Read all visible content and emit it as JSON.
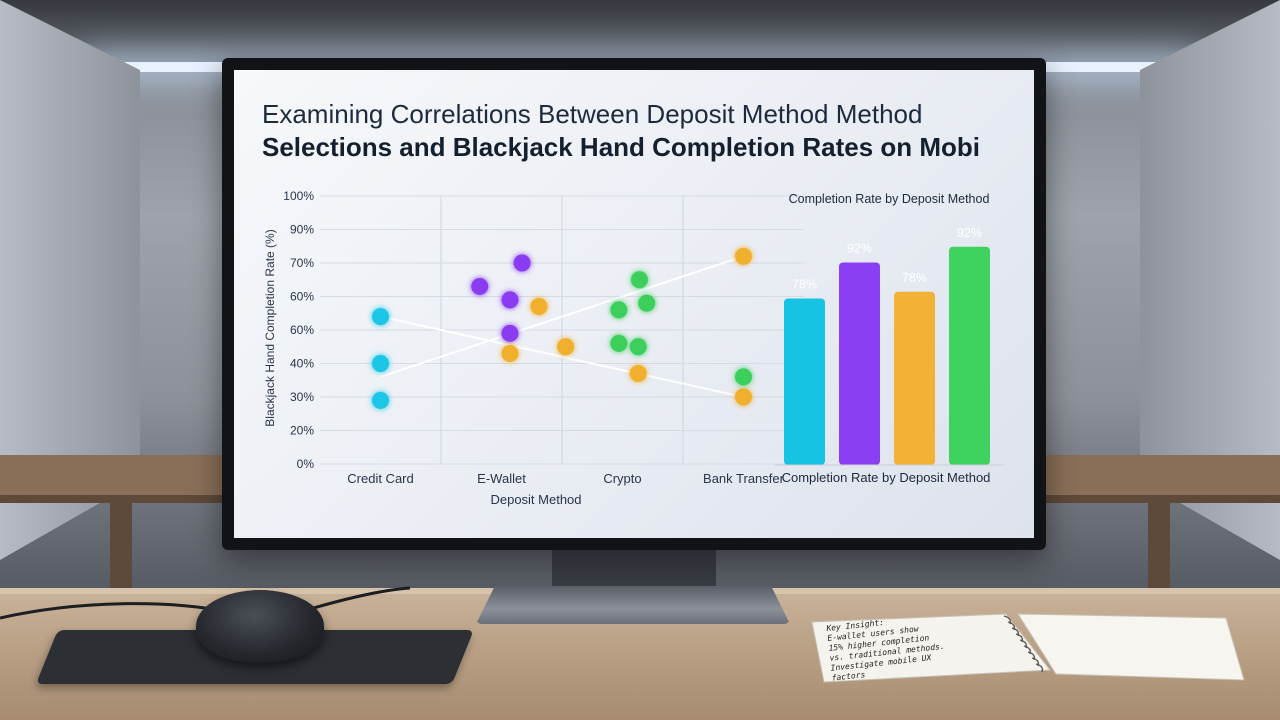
{
  "title": {
    "line1": "Examining Correlations Between Deposit Method Method",
    "line2": "Selections and Blackjack Hand Completion Rates on Mobi"
  },
  "chart_data": [
    {
      "type": "scatter",
      "xlabel": "Deposit Method",
      "ylabel": "Blackjack Hand Completion Rate (%)",
      "categories": [
        "Credit Card",
        "E-Wallet",
        "Crypto",
        "Bank Transfer"
      ],
      "y_tick_labels": [
        "0%",
        "20%",
        "30%",
        "40%",
        "60%",
        "60%",
        "70%",
        "90%",
        "100%"
      ],
      "grid": true,
      "series": [
        {
          "color": "#1ec6e6",
          "points": [
            {
              "category": "Credit Card",
              "tick_position": 4.4
            },
            {
              "category": "Credit Card",
              "tick_position": 3.0
            },
            {
              "category": "Credit Card",
              "tick_position": 1.9
            }
          ]
        },
        {
          "color": "#8a3cf0",
          "points": [
            {
              "category": "E-Wallet",
              "offset": -0.18,
              "tick_position": 5.3
            },
            {
              "category": "E-Wallet",
              "offset": 0.17,
              "tick_position": 6.0
            },
            {
              "category": "E-Wallet",
              "offset": 0.07,
              "tick_position": 4.9
            },
            {
              "category": "E-Wallet",
              "offset": 0.07,
              "tick_position": 3.9
            }
          ]
        },
        {
          "color": "#f0b02e",
          "points": [
            {
              "category": "E-Wallet",
              "offset": 0.07,
              "tick_position": 3.3
            },
            {
              "category": "E-Wallet",
              "offset": 0.31,
              "tick_position": 4.7
            },
            {
              "category": "E-Wallet",
              "offset": 0.53,
              "tick_position": 3.5
            },
            {
              "category": "Crypto",
              "offset": 0.13,
              "tick_position": 2.7
            },
            {
              "category": "Bank Transfer",
              "tick_position": 6.2
            },
            {
              "category": "Bank Transfer",
              "tick_position": 2.0
            }
          ]
        },
        {
          "color": "#3ccf5c",
          "points": [
            {
              "category": "Crypto",
              "offset": 0.14,
              "tick_position": 5.5
            },
            {
              "category": "Crypto",
              "offset": -0.03,
              "tick_position": 4.6
            },
            {
              "category": "Crypto",
              "offset": 0.2,
              "tick_position": 4.8
            },
            {
              "category": "Crypto",
              "offset": -0.03,
              "tick_position": 3.6
            },
            {
              "category": "Crypto",
              "offset": 0.13,
              "tick_position": 3.5
            },
            {
              "category": "Bank Transfer",
              "tick_position": 2.6
            }
          ]
        }
      ],
      "trend_lines": [
        {
          "color": "#ffffff",
          "from": {
            "category": "Credit Card",
            "tick_position": 4.4
          },
          "to": {
            "category": "Bank Transfer",
            "tick_position": 2.0
          }
        },
        {
          "color": "#ffffff",
          "from": {
            "category": "Credit Card",
            "tick_position": 2.6
          },
          "to": {
            "category": "Bank Transfer",
            "tick_position": 6.2
          }
        }
      ]
    },
    {
      "type": "bar",
      "title": "Completion Rate by Deposit Method",
      "xlabel": "Completion Rate by Deposit Method",
      "ylim": [
        0,
        100
      ],
      "values": [
        78,
        92,
        78,
        92
      ],
      "value_labels": [
        "78%",
        "92%",
        "78%",
        "92%"
      ],
      "colors": [
        "#16c3e2",
        "#8b3ff2",
        "#f2b235",
        "#3fd25f"
      ],
      "apparent_heights": [
        74,
        90,
        77,
        97
      ]
    }
  ],
  "notebook": {
    "lines": [
      "Key Insight:",
      "E-wallet users show",
      "15% higher completion",
      "vs. traditional methods.",
      "Investigate mobile UX",
      "factors"
    ]
  }
}
